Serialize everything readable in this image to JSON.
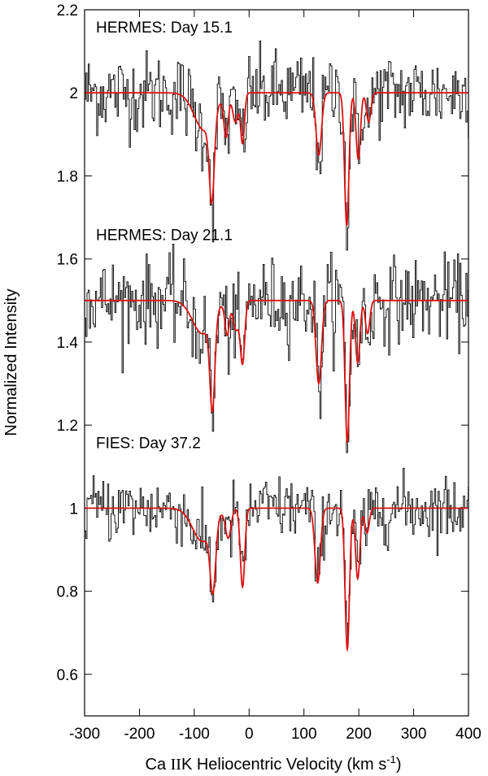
{
  "chart_data": {
    "type": "line",
    "xlabel_prefix": "Ca ",
    "xlabel_ion": "II",
    "xlabel_mid": "K Heliocentric Velocity (km s",
    "xlabel_exp": "-1",
    "xlabel_close": ")",
    "ylabel": "Normalized Intensity",
    "xlim": [
      -300,
      400
    ],
    "ylim": [
      0.5,
      2.2
    ],
    "x_ticks": [
      -300,
      -200,
      -100,
      0,
      100,
      200,
      300,
      400
    ],
    "x_tick_labels": [
      "-300",
      "-200",
      "-100",
      "0",
      "100",
      "200",
      "300",
      "400"
    ],
    "y_ticks": [
      0.6,
      0.8,
      1.0,
      1.2,
      1.4,
      1.6,
      1.8,
      2.0,
      2.2
    ],
    "y_tick_labels": [
      "0.6",
      "0.8",
      "1",
      "1.2",
      "1.4",
      "1.6",
      "1.8",
      "2",
      "2.2"
    ],
    "colors": {
      "data": "#000000",
      "fit": "#dd1111",
      "frame": "#000000"
    },
    "panels": [
      {
        "label": "HERMES: Day 15.1",
        "continuum": 2.0,
        "noise": 0.05,
        "components": [
          {
            "v": -68,
            "depth": 0.2,
            "width": 4.5
          },
          {
            "v": -82,
            "depth": 0.09,
            "width": 18
          },
          {
            "v": -42,
            "depth": 0.1,
            "width": 4
          },
          {
            "v": -25,
            "depth": 0.07,
            "width": 5
          },
          {
            "v": -12,
            "depth": 0.12,
            "width": 3.5
          },
          {
            "v": 127,
            "depth": 0.15,
            "width": 5
          },
          {
            "v": 178,
            "depth": 0.32,
            "width": 4
          },
          {
            "v": 199,
            "depth": 0.16,
            "width": 4
          },
          {
            "v": 218,
            "depth": 0.07,
            "width": 4
          }
        ]
      },
      {
        "label": "HERMES: Day 21.1",
        "continuum": 1.5,
        "noise": 0.05,
        "components": [
          {
            "v": -67,
            "depth": 0.22,
            "width": 4.5
          },
          {
            "v": -85,
            "depth": 0.08,
            "width": 18
          },
          {
            "v": -40,
            "depth": 0.08,
            "width": 4
          },
          {
            "v": -24,
            "depth": 0.07,
            "width": 5
          },
          {
            "v": -12,
            "depth": 0.15,
            "width": 4
          },
          {
            "v": 127,
            "depth": 0.2,
            "width": 5
          },
          {
            "v": 179,
            "depth": 0.34,
            "width": 4
          },
          {
            "v": 198,
            "depth": 0.15,
            "width": 4
          },
          {
            "v": 216,
            "depth": 0.08,
            "width": 4
          }
        ]
      },
      {
        "label": "FIES: Day 37.2",
        "continuum": 1.0,
        "noise": 0.04,
        "components": [
          {
            "v": -66,
            "depth": 0.16,
            "width": 5
          },
          {
            "v": -85,
            "depth": 0.08,
            "width": 18
          },
          {
            "v": -38,
            "depth": 0.07,
            "width": 5
          },
          {
            "v": -12,
            "depth": 0.19,
            "width": 4
          },
          {
            "v": 125,
            "depth": 0.18,
            "width": 5
          },
          {
            "v": 179,
            "depth": 0.34,
            "width": 4
          },
          {
            "v": 198,
            "depth": 0.17,
            "width": 4
          },
          {
            "v": 215,
            "depth": 0.06,
            "width": 4
          }
        ]
      }
    ]
  }
}
